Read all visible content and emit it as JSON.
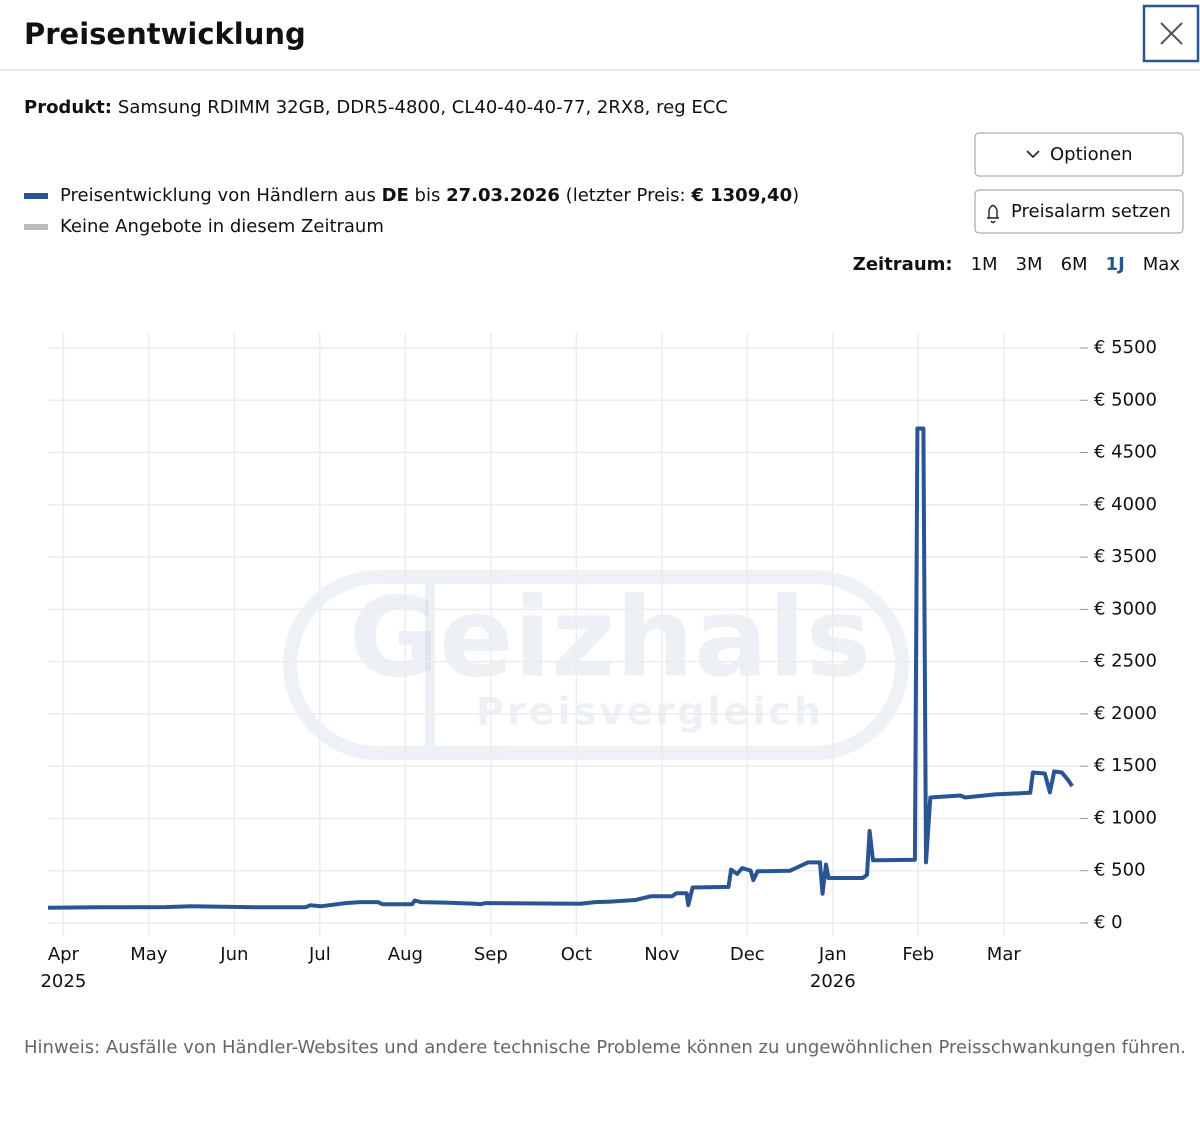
{
  "header": {
    "title": "Preisentwicklung"
  },
  "product": {
    "label": "Produkt:",
    "text": "Samsung RDIMM 32GB, DDR5-4800, CL40-40-40-77, 2RX8, reg ECC"
  },
  "buttons": {
    "options": "Optionen",
    "alarm": "Preisalarm setzen"
  },
  "legend": [
    {
      "color": "#2a5592",
      "parts": [
        {
          "text": "Preisentwicklung von Händlern aus ",
          "bold": false
        },
        {
          "text": "DE",
          "bold": true
        },
        {
          "text": " bis ",
          "bold": false
        },
        {
          "text": "27.03.2026",
          "bold": true
        },
        {
          "text": " (letzter Preis: ",
          "bold": false
        },
        {
          "text": "€ 1309,40",
          "bold": true
        },
        {
          "text": ")",
          "bold": false
        }
      ]
    },
    {
      "color": "#bbbbbb",
      "parts": [
        {
          "text": "Keine Angebote in diesem Zeitraum",
          "bold": false
        }
      ]
    }
  ],
  "zeitraum": {
    "label": "Zeitraum:",
    "options": [
      "1M",
      "3M",
      "6M",
      "1J",
      "Max"
    ],
    "selected": 3
  },
  "watermark": {
    "main": "Geizhals",
    "sub": "Preisvergleich"
  },
  "chart_data": {
    "type": "line",
    "x": [
      -0.18,
      0.43,
      1.19,
      1.49,
      2.3,
      2.83,
      2.89,
      3.01,
      3.3,
      3.47,
      3.68,
      3.73,
      4.08,
      4.11,
      4.18,
      4.47,
      4.82,
      4.88,
      4.94,
      6.05,
      6.22,
      6.4,
      6.69,
      6.87,
      7.12,
      7.17,
      7.29,
      7.31,
      7.36,
      7.78,
      7.81,
      7.88,
      7.94,
      8.04,
      8.07,
      8.12,
      8.5,
      8.71,
      8.85,
      8.88,
      8.92,
      8.95,
      9.35,
      9.4,
      9.43,
      9.47,
      9.96,
      9.99,
      10.06,
      10.09,
      10.14,
      10.49,
      10.55,
      10.9,
      11.31,
      11.34,
      11.48,
      11.54,
      11.59,
      11.68,
      11.75,
      11.8
    ],
    "series": [
      {
        "color": "#2a5592",
        "values": [
          145,
          150,
          152,
          160,
          150,
          150,
          170,
          160,
          190,
          200,
          200,
          180,
          180,
          215,
          200,
          195,
          185,
          180,
          190,
          185,
          200,
          205,
          220,
          255,
          255,
          285,
          285,
          170,
          340,
          345,
          510,
          470,
          525,
          500,
          410,
          495,
          500,
          580,
          580,
          280,
          560,
          430,
          430,
          460,
          880,
          600,
          605,
          4730,
          4730,
          580,
          1200,
          1220,
          1200,
          1230,
          1245,
          1440,
          1430,
          1250,
          1450,
          1440,
          1370,
          1309.4
        ]
      }
    ],
    "xlim": [
      -0.18,
      11.95
    ],
    "xticks": [
      {
        "value": 0,
        "label": "Apr"
      },
      {
        "value": 1,
        "label": "May"
      },
      {
        "value": 2,
        "label": "Jun"
      },
      {
        "value": 3,
        "label": "Jul"
      },
      {
        "value": 4,
        "label": "Aug"
      },
      {
        "value": 5,
        "label": "Sep"
      },
      {
        "value": 6,
        "label": "Oct"
      },
      {
        "value": 7,
        "label": "Nov"
      },
      {
        "value": 8,
        "label": "Dec"
      },
      {
        "value": 9,
        "label": "Jan"
      },
      {
        "value": 10,
        "label": "Feb"
      },
      {
        "value": 11,
        "label": "Mar"
      }
    ],
    "xtick_years": [
      {
        "value": 0,
        "label": "2025"
      },
      {
        "value": 9,
        "label": "2026"
      }
    ],
    "ylim": [
      0,
      5500
    ],
    "yticks": [
      {
        "value": 0,
        "label": "€ 0"
      },
      {
        "value": 500,
        "label": "€ 500"
      },
      {
        "value": 1000,
        "label": "€ 1000"
      },
      {
        "value": 1500,
        "label": "€ 1500"
      },
      {
        "value": 2000,
        "label": "€ 2000"
      },
      {
        "value": 2500,
        "label": "€ 2500"
      },
      {
        "value": 3000,
        "label": "€ 3000"
      },
      {
        "value": 3500,
        "label": "€ 3500"
      },
      {
        "value": 4000,
        "label": "€ 4000"
      },
      {
        "value": 4500,
        "label": "€ 4500"
      },
      {
        "value": 5000,
        "label": "€ 5000"
      },
      {
        "value": 5500,
        "label": "€ 5500"
      }
    ],
    "grid": true
  },
  "note": "Hinweis: Ausfälle von Händler-Websites und andere technische Probleme können zu ungewöhnlichen Preisschwankungen führen."
}
